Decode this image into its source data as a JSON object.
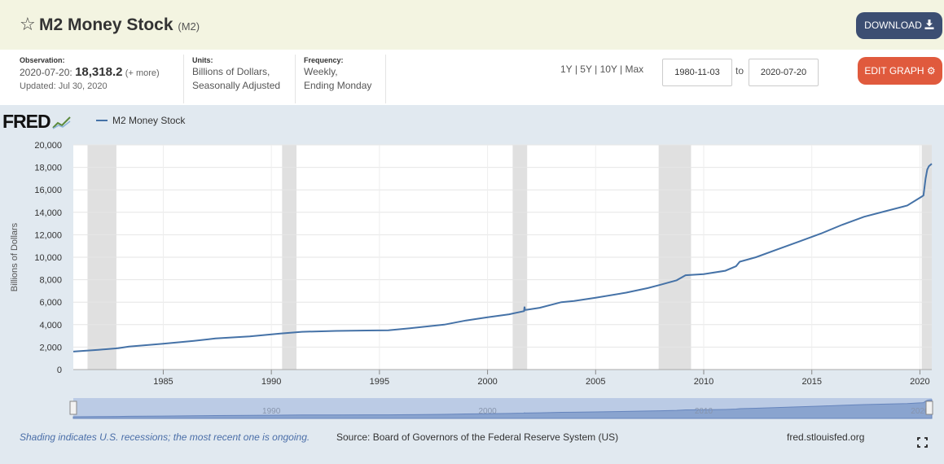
{
  "header": {
    "title": "M2 Money Stock",
    "code": "(M2)",
    "download_label": "DOWNLOAD"
  },
  "observation": {
    "label": "Observation:",
    "date": "2020-07-20:",
    "value": "18,318.2",
    "more": "(+ more)",
    "updated": "Updated: Jul 30, 2020"
  },
  "units": {
    "label": "Units:",
    "line1": "Billions of Dollars,",
    "line2": "Seasonally Adjusted"
  },
  "frequency": {
    "label": "Frequency:",
    "line1": "Weekly,",
    "line2": "Ending Monday"
  },
  "controls": {
    "ranges": [
      "1Y",
      "5Y",
      "10Y",
      "Max"
    ],
    "separator": "|",
    "start_date": "1980-11-03",
    "to_label": "to",
    "end_date": "2020-07-20",
    "edit_label": "EDIT GRAPH"
  },
  "logo": "FRED",
  "footer": {
    "note": "Shading indicates U.S. recessions; the most recent one is ongoing.",
    "source": "Source: Board of Governors of the Federal Reserve System (US)",
    "url": "fred.stlouisfed.org"
  },
  "colors": {
    "line": "#4572a7",
    "recession": "#e0e0e0",
    "download_button": "#3c4e72",
    "edit_button": "#e05a3d"
  },
  "chart_data": {
    "type": "line",
    "ylabel": "Billions of Dollars",
    "ylim": [
      0,
      20000
    ],
    "xlim": [
      "1980-11-03",
      "2020-07-20"
    ],
    "yticks": [
      "0",
      "2,000",
      "4,000",
      "6,000",
      "8,000",
      "10,000",
      "12,000",
      "14,000",
      "16,000",
      "18,000",
      "20,000"
    ],
    "xticks": [
      "1985",
      "1990",
      "1995",
      "2000",
      "2005",
      "2010",
      "2015",
      "2020"
    ],
    "navigator_ticks": [
      "1990",
      "2000",
      "2010",
      "2020"
    ],
    "grid": true,
    "legend_position": "top-left",
    "recessions": [
      [
        "1981-07-01",
        "1982-11-01"
      ],
      [
        "1990-07-01",
        "1991-03-01"
      ],
      [
        "2001-03-01",
        "2001-11-01"
      ],
      [
        "2007-12-01",
        "2009-06-01"
      ],
      [
        "2020-02-01",
        "2020-07-20"
      ]
    ],
    "series": [
      {
        "name": "M2 Money Stock",
        "points": [
          [
            "1980-11-03",
            1600
          ],
          [
            "1982-01-01",
            1760
          ],
          [
            "1982-12-01",
            1900
          ],
          [
            "1983-06-01",
            2050
          ],
          [
            "1985-01-01",
            2300
          ],
          [
            "1986-06-01",
            2550
          ],
          [
            "1987-06-01",
            2770
          ],
          [
            "1989-01-01",
            2960
          ],
          [
            "1990-06-01",
            3200
          ],
          [
            "1991-06-01",
            3360
          ],
          [
            "1993-01-01",
            3440
          ],
          [
            "1994-06-01",
            3480
          ],
          [
            "1995-06-01",
            3500
          ],
          [
            "1996-06-01",
            3680
          ],
          [
            "1998-01-01",
            4000
          ],
          [
            "1999-01-01",
            4370
          ],
          [
            "2000-01-01",
            4650
          ],
          [
            "2001-01-01",
            4920
          ],
          [
            "2001-09-10",
            5200
          ],
          [
            "2001-09-17",
            5600
          ],
          [
            "2001-09-24",
            5300
          ],
          [
            "2002-06-01",
            5500
          ],
          [
            "2003-06-01",
            6000
          ],
          [
            "2004-01-01",
            6100
          ],
          [
            "2005-01-01",
            6400
          ],
          [
            "2006-06-01",
            6850
          ],
          [
            "2007-06-01",
            7250
          ],
          [
            "2008-01-01",
            7550
          ],
          [
            "2008-10-01",
            7950
          ],
          [
            "2009-03-01",
            8400
          ],
          [
            "2010-01-01",
            8500
          ],
          [
            "2011-01-01",
            8800
          ],
          [
            "2011-07-01",
            9200
          ],
          [
            "2011-09-01",
            9600
          ],
          [
            "2012-06-01",
            10000
          ],
          [
            "2013-06-01",
            10700
          ],
          [
            "2014-06-01",
            11400
          ],
          [
            "2015-06-01",
            12100
          ],
          [
            "2016-06-01",
            12900
          ],
          [
            "2017-06-01",
            13600
          ],
          [
            "2018-06-01",
            14100
          ],
          [
            "2019-06-01",
            14600
          ],
          [
            "2020-02-01",
            15400
          ],
          [
            "2020-03-02",
            15500
          ],
          [
            "2020-04-06",
            17000
          ],
          [
            "2020-05-04",
            17800
          ],
          [
            "2020-06-01",
            18100
          ],
          [
            "2020-07-20",
            18318.2
          ]
        ]
      }
    ]
  }
}
